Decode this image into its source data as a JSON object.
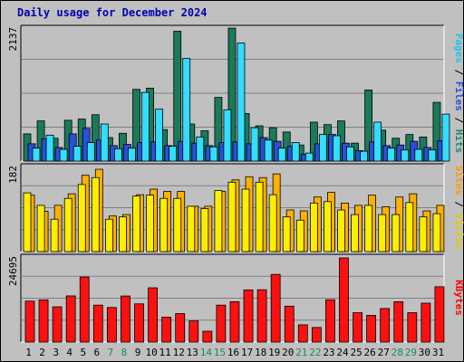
{
  "title": "Daily usage for December 2024",
  "chart_data": [
    {
      "type": "bar",
      "panel": "top",
      "ymax_label": "2137",
      "ylim": [
        0,
        2137
      ],
      "categories": [
        "1",
        "2",
        "3",
        "4",
        "5",
        "6",
        "7",
        "8",
        "9",
        "10",
        "11",
        "12",
        "13",
        "14",
        "15",
        "16",
        "17",
        "18",
        "19",
        "20",
        "21",
        "22",
        "23",
        "24",
        "25",
        "26",
        "27",
        "28",
        "29",
        "30",
        "31"
      ],
      "weekend_days": [
        "7",
        "8",
        "14",
        "15",
        "21",
        "22",
        "28",
        "29"
      ],
      "legend": [
        "Pages",
        "Files",
        "Hits"
      ],
      "series": [
        {
          "name": "Hits",
          "color": "#1a7a5a",
          "values": [
            440,
            650,
            370,
            660,
            680,
            750,
            380,
            450,
            1160,
            1180,
            510,
            2100,
            600,
            490,
            1030,
            2150,
            770,
            570,
            540,
            470,
            260,
            630,
            590,
            650,
            290,
            1150,
            500,
            370,
            430,
            390,
            950
          ]
        },
        {
          "name": "Files",
          "color": "#2a4fd8",
          "values": [
            280,
            360,
            220,
            440,
            530,
            340,
            250,
            270,
            300,
            310,
            250,
            320,
            290,
            250,
            300,
            310,
            280,
            380,
            320,
            240,
            110,
            280,
            430,
            290,
            170,
            310,
            250,
            260,
            320,
            220,
            330
          ]
        },
        {
          "name": "Pages",
          "color": "#33ddff",
          "values": [
            210,
            420,
            190,
            240,
            300,
            600,
            200,
            210,
            1110,
            840,
            240,
            1660,
            390,
            230,
            830,
            1910,
            540,
            340,
            210,
            300,
            130,
            430,
            410,
            230,
            160,
            630,
            210,
            180,
            190,
            180,
            760
          ]
        }
      ]
    },
    {
      "type": "bar",
      "panel": "middle",
      "ymax_label": "182",
      "ylim": [
        0,
        182
      ],
      "categories": [
        "1",
        "2",
        "3",
        "4",
        "5",
        "6",
        "7",
        "8",
        "9",
        "10",
        "11",
        "12",
        "13",
        "14",
        "15",
        "16",
        "17",
        "18",
        "19",
        "20",
        "21",
        "22",
        "23",
        "24",
        "25",
        "26",
        "27",
        "28",
        "29",
        "30",
        "31"
      ],
      "legend": [
        "Sites",
        "Visits"
      ],
      "series": [
        {
          "name": "Visits",
          "color": "#ffb000",
          "values": [
            122,
            87,
            100,
            125,
            165,
            178,
            77,
            80,
            123,
            135,
            130,
            130,
            98,
            98,
            130,
            155,
            162,
            160,
            168,
            90,
            88,
            118,
            128,
            105,
            100,
            122,
            97,
            118,
            125,
            88,
            100
          ]
        },
        {
          "name": "Sites",
          "color": "#ffee00",
          "values": [
            127,
            100,
            70,
            115,
            145,
            160,
            70,
            75,
            120,
            122,
            115,
            115,
            98,
            93,
            132,
            150,
            135,
            150,
            123,
            75,
            68,
            105,
            108,
            90,
            80,
            100,
            80,
            80,
            106,
            75,
            82
          ]
        }
      ]
    },
    {
      "type": "bar",
      "panel": "bottom",
      "ymax_label": "24695",
      "ylim": [
        0,
        24695
      ],
      "categories": [
        "1",
        "2",
        "3",
        "4",
        "5",
        "6",
        "7",
        "8",
        "9",
        "10",
        "11",
        "12",
        "13",
        "14",
        "15",
        "16",
        "17",
        "18",
        "19",
        "20",
        "21",
        "22",
        "23",
        "24",
        "25",
        "26",
        "27",
        "28",
        "29",
        "30",
        "31"
      ],
      "legend": [
        "KBytes"
      ],
      "series": [
        {
          "name": "KBytes",
          "color": "#ff1010",
          "values": [
            12020,
            12390,
            10350,
            13550,
            19100,
            10840,
            10150,
            13520,
            11220,
            15930,
            7310,
            8360,
            6210,
            3190,
            10840,
            11860,
            15310,
            15360,
            19860,
            10540,
            5060,
            4290,
            12440,
            24695,
            8620,
            7840,
            9850,
            11850,
            8620,
            11420,
            16230
          ]
        }
      ]
    }
  ]
}
